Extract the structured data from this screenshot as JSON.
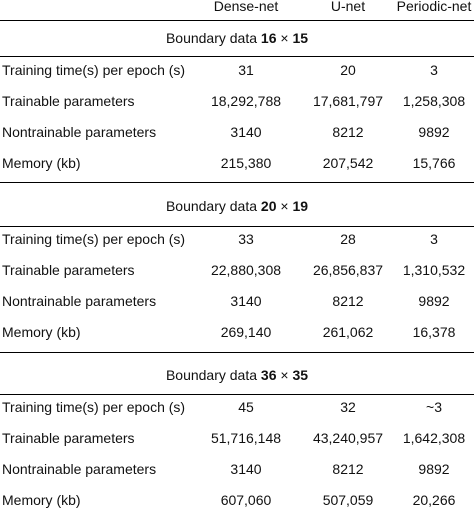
{
  "header": {
    "columns": [
      "Dense-net",
      "U-net",
      "Periodic-net"
    ]
  },
  "sections": [
    {
      "title_prefix": "Boundary data",
      "size_a": "16",
      "times": "×",
      "size_b": "15",
      "rows": [
        {
          "label": "Training time(s) per epoch (s)",
          "values": [
            "31",
            "20",
            "3"
          ]
        },
        {
          "label": "Trainable parameters",
          "values": [
            "18,292,788",
            "17,681,797",
            "1,258,308"
          ]
        },
        {
          "label": "Nontrainable parameters",
          "values": [
            "3140",
            "8212",
            "9892"
          ]
        },
        {
          "label": "Memory (kb)",
          "values": [
            "215,380",
            "207,542",
            "15,766"
          ]
        }
      ]
    },
    {
      "title_prefix": "Boundary data",
      "size_a": "20",
      "times": "×",
      "size_b": "19",
      "rows": [
        {
          "label": "Training time(s) per epoch (s)",
          "values": [
            "33",
            "28",
            "3"
          ]
        },
        {
          "label": "Trainable parameters",
          "values": [
            "22,880,308",
            "26,856,837",
            "1,310,532"
          ]
        },
        {
          "label": "Nontrainable parameters",
          "values": [
            "3140",
            "8212",
            "9892"
          ]
        },
        {
          "label": "Memory (kb)",
          "values": [
            "269,140",
            "261,062",
            "16,378"
          ]
        }
      ]
    },
    {
      "title_prefix": "Boundary data",
      "size_a": "36",
      "times": "×",
      "size_b": "35",
      "rows": [
        {
          "label": "Training time(s) per epoch (s)",
          "values": [
            "45",
            "32",
            "~3"
          ]
        },
        {
          "label": "Trainable parameters",
          "values": [
            "51,716,148",
            "43,240,957",
            "1,642,308"
          ]
        },
        {
          "label": "Nontrainable parameters",
          "values": [
            "3140",
            "8212",
            "9892"
          ]
        },
        {
          "label": "Memory (kb)",
          "values": [
            "607,060",
            "507,059",
            "20,266"
          ]
        }
      ]
    }
  ]
}
